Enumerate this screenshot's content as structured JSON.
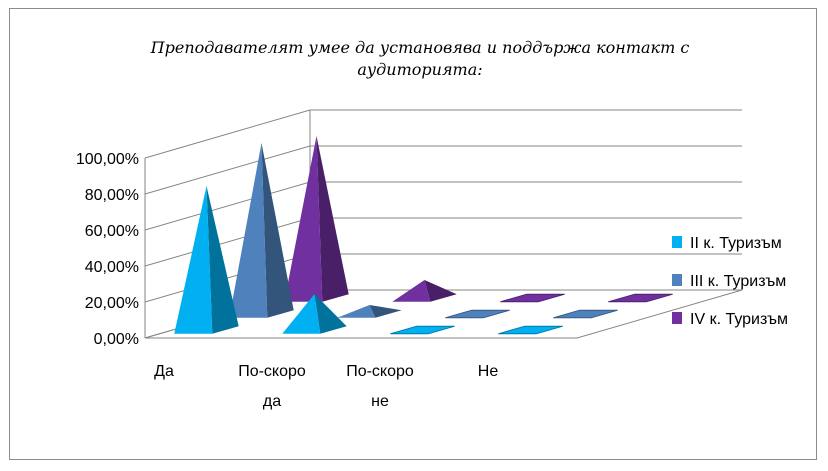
{
  "chart_data": {
    "type": "bar",
    "subtype": "3d-pyramid",
    "title": "Преподавателят  умее да установява и поддържа контакт с аудиторията:",
    "categories": [
      "Да",
      "По-скоро да",
      "По-скоро не",
      "Не"
    ],
    "category_lines": [
      [
        "Да"
      ],
      [
        "По-скоро",
        "да"
      ],
      [
        "По-скоро",
        "не"
      ],
      [
        "Не"
      ]
    ],
    "series": [
      {
        "name": "II к. Туризъм",
        "values": [
          0.8,
          0.2,
          0.0,
          0.0
        ],
        "color": "#00b0f0"
      },
      {
        "name": "III к. Туризъм",
        "values": [
          0.95,
          0.05,
          0.0,
          0.0
        ],
        "color": "#4f81bd"
      },
      {
        "name": "IV к. Туризъм",
        "values": [
          0.9,
          0.1,
          0.0,
          0.0
        ],
        "color": "#7030a0"
      }
    ],
    "yticks": [
      "0,00%",
      "20,00%",
      "40,00%",
      "60,00%",
      "80,00%",
      "100,00%"
    ],
    "ylim": [
      0,
      1
    ],
    "grid": true,
    "legend_position": "right"
  }
}
